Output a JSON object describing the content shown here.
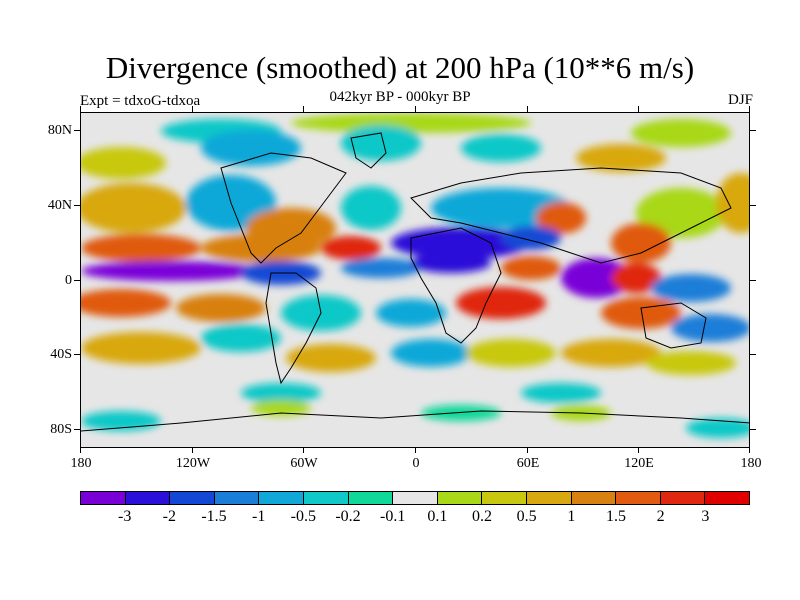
{
  "title": "Divergence (smoothed) at 200 hPa (10**6 m/s)",
  "subtitle": "042kyr BP - 000kyr BP",
  "experiment": "Expt = tdxoG-tdxoa",
  "season": "DJF",
  "y_axis": [
    "80N",
    "40N",
    "0",
    "40S",
    "80S"
  ],
  "x_axis": [
    "180",
    "120W",
    "60W",
    "0",
    "60E",
    "120E",
    "180"
  ],
  "colorbar": {
    "labels": [
      "-3",
      "-2",
      "-1.5",
      "-1",
      "-0.5",
      "-0.2",
      "-0.1",
      "0.1",
      "0.2",
      "0.5",
      "1",
      "1.5",
      "2",
      "3"
    ],
    "colors": [
      "#7a00d8",
      "#2a10d8",
      "#1448d4",
      "#1a7ed8",
      "#10a8d8",
      "#10c8c8",
      "#10d898",
      "#e6e6e6",
      "#a8d818",
      "#c8c810",
      "#d8a810",
      "#d88010",
      "#e05a10",
      "#e02810",
      "#e00000"
    ]
  }
}
